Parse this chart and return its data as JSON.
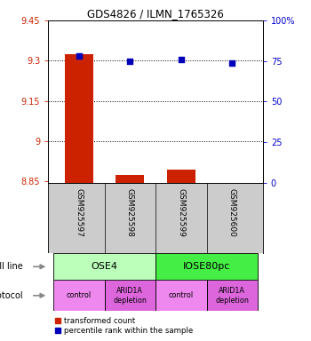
{
  "title": "GDS4826 / ILMN_1765326",
  "samples": [
    "GSM925597",
    "GSM925598",
    "GSM925599",
    "GSM925600"
  ],
  "bar_values": [
    9.325,
    8.875,
    8.895,
    8.845
  ],
  "bar_bottom": 8.845,
  "percentile_values": [
    78,
    75,
    76,
    74
  ],
  "ylim_left": [
    8.845,
    9.45
  ],
  "ylim_right": [
    0,
    100
  ],
  "yticks_left": [
    8.85,
    9.0,
    9.15,
    9.3,
    9.45
  ],
  "ytick_labels_left": [
    "8.85",
    "9",
    "9.15",
    "9.3",
    "9.45"
  ],
  "yticks_right": [
    0,
    25,
    50,
    75,
    100
  ],
  "ytick_labels_right": [
    "0",
    "25",
    "50",
    "75",
    "100%"
  ],
  "hlines": [
    9.3,
    9.15,
    9.0
  ],
  "bar_color": "#cc2200",
  "dot_color": "#0000bb",
  "cell_line_labels": [
    "OSE4",
    "IOSE80pc"
  ],
  "cell_line_spans": [
    [
      0,
      2
    ],
    [
      2,
      4
    ]
  ],
  "cell_line_colors": [
    "#bbffbb",
    "#44ee44"
  ],
  "protocol_labels": [
    "control",
    "ARID1A\ndepletion",
    "control",
    "ARID1A\ndepletion"
  ],
  "protocol_colors": [
    "#ee88ee",
    "#dd66dd",
    "#ee88ee",
    "#dd66dd"
  ],
  "legend_bar_label": "transformed count",
  "legend_dot_label": "percentile rank within the sample",
  "cell_line_row_label": "cell line",
  "protocol_row_label": "protocol",
  "bar_width": 0.55,
  "background_color": "#ffffff",
  "plot_bg": "#ffffff",
  "sample_box_color": "#cccccc",
  "title_fontsize": 8.5,
  "tick_fontsize": 7,
  "label_fontsize": 7
}
